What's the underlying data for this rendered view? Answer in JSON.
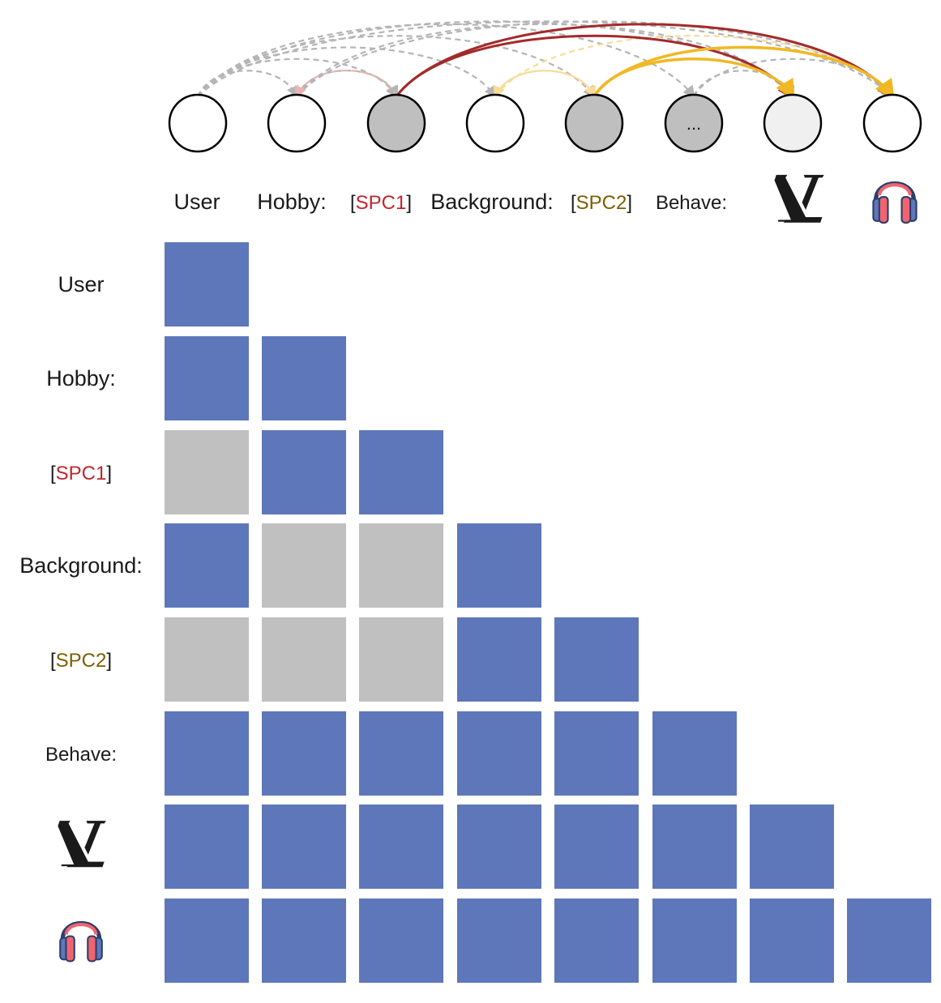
{
  "tokens": [
    {
      "id": "user",
      "label": "User",
      "kind": "text",
      "node_fill": "#ffffff",
      "row_label_color": "#1a1a1a"
    },
    {
      "id": "hobby",
      "label": "Hobby:",
      "kind": "text",
      "node_fill": "#ffffff",
      "row_label_color": "#1a1a1a"
    },
    {
      "id": "spc1",
      "label": "SPC1",
      "kind": "special",
      "node_fill": "#bfbfbf",
      "text_color": "#c0262d"
    },
    {
      "id": "background",
      "label": "Background:",
      "kind": "text",
      "node_fill": "#ffffff"
    },
    {
      "id": "spc2",
      "label": "SPC2",
      "kind": "special",
      "node_fill": "#bfbfbf",
      "text_color": "#7a5f00"
    },
    {
      "id": "behave",
      "label": "Behave:",
      "kind": "text",
      "node_fill": "#bfbfbf",
      "node_text": "..."
    },
    {
      "id": "lv",
      "label": "",
      "kind": "icon",
      "icon": "lv-logo-icon",
      "node_fill": "#f0f0f0"
    },
    {
      "id": "headphones",
      "label": "",
      "kind": "icon",
      "icon": "headphones-icon",
      "node_fill": "#ffffff"
    }
  ],
  "bracket_open": "[",
  "bracket_close": "]",
  "colors": {
    "attend": "#5e77ba",
    "masked": "#c0c0c0",
    "arc_gray": "#b5b5b5",
    "arc_pink": "#ecb3b3",
    "arc_lightyellow": "#f7dc9a",
    "arc_darkred": "#a32a2a",
    "arc_gold": "#f0b823"
  },
  "mask_matrix": [
    [
      1,
      0,
      0,
      0,
      0,
      0,
      0,
      0
    ],
    [
      1,
      1,
      0,
      0,
      0,
      0,
      0,
      0
    ],
    [
      2,
      1,
      1,
      0,
      0,
      0,
      0,
      0
    ],
    [
      1,
      2,
      2,
      1,
      0,
      0,
      0,
      0
    ],
    [
      2,
      2,
      2,
      1,
      1,
      0,
      0,
      0
    ],
    [
      1,
      1,
      1,
      1,
      1,
      1,
      0,
      0
    ],
    [
      1,
      1,
      1,
      1,
      1,
      1,
      1,
      0
    ],
    [
      1,
      1,
      1,
      1,
      1,
      1,
      1,
      1
    ]
  ],
  "arcs": [
    {
      "from": 0,
      "to": 1,
      "style": "gray-dashed"
    },
    {
      "from": 0,
      "to": 2,
      "style": "gray-dashed"
    },
    {
      "from": 0,
      "to": 3,
      "style": "gray-dashed"
    },
    {
      "from": 0,
      "to": 4,
      "style": "gray-dashed"
    },
    {
      "from": 0,
      "to": 5,
      "style": "gray-dashed"
    },
    {
      "from": 0,
      "to": 6,
      "style": "gray-dashed"
    },
    {
      "from": 0,
      "to": 7,
      "style": "gray-dashed"
    },
    {
      "from": 1,
      "to": 2,
      "style": "gray-dashed"
    },
    {
      "from": 1,
      "to": 6,
      "style": "gray-dashed"
    },
    {
      "from": 1,
      "to": 7,
      "style": "gray-dashed"
    },
    {
      "from": 5,
      "to": 6,
      "style": "gray-dashed"
    },
    {
      "from": 5,
      "to": 7,
      "style": "gray-dashed"
    },
    {
      "from": 2,
      "to": 1,
      "style": "pink-dashed"
    },
    {
      "from": 3,
      "to": 4,
      "style": "lightyellow-dashed"
    },
    {
      "from": 3,
      "to": 7,
      "style": "lightyellow-dashed"
    },
    {
      "from": 4,
      "to": 3,
      "style": "lightyellow-dashed"
    },
    {
      "from": 2,
      "to": 6,
      "style": "darkred-solid"
    },
    {
      "from": 2,
      "to": 7,
      "style": "darkred-solid"
    },
    {
      "from": 4,
      "to": 6,
      "style": "gold-solid"
    },
    {
      "from": 4,
      "to": 7,
      "style": "gold-solid"
    }
  ]
}
